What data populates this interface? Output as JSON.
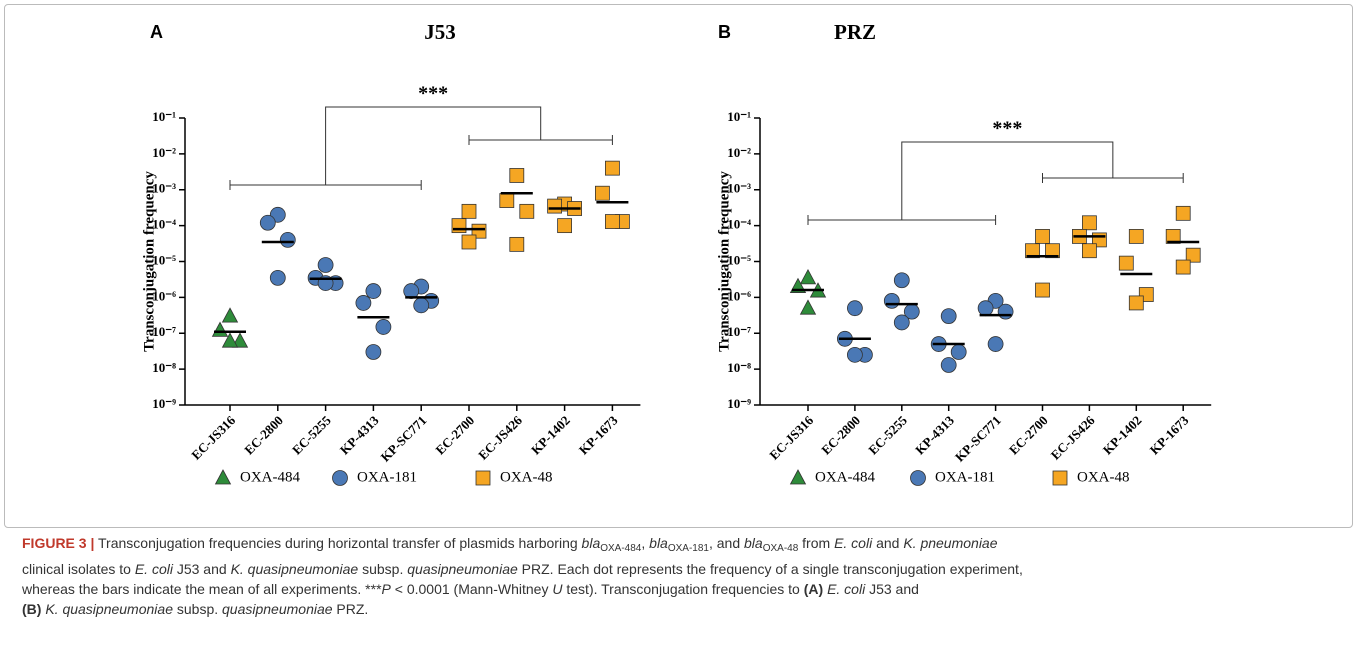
{
  "chart_data": [
    {
      "type": "strip",
      "panel": "A",
      "title": "J53",
      "y_label": "Transconjugation frequency",
      "log_y": true,
      "categories": [
        "EC-JS316",
        "EC-2800",
        "EC-5255",
        "KP-4313",
        "KP-SC771",
        "EC-2700",
        "EC-JS426",
        "KP-1402",
        "KP-1673"
      ],
      "ylim": [
        1e-09,
        0.1
      ],
      "yticks": [
        {
          "value": 1e-09,
          "label": "10⁻⁹"
        },
        {
          "value": 1e-08,
          "label": "10⁻⁸"
        },
        {
          "value": 1e-07,
          "label": "10⁻⁷"
        },
        {
          "value": 1e-06,
          "label": "10⁻⁶"
        },
        {
          "value": 1e-05,
          "label": "10⁻⁵"
        },
        {
          "value": 0.0001,
          "label": "10⁻⁴"
        },
        {
          "value": 0.001,
          "label": "10⁻³"
        },
        {
          "value": 0.01,
          "label": "10⁻²"
        },
        {
          "value": 0.1,
          "label": "10⁻¹"
        }
      ],
      "annotation": "***",
      "series": [
        {
          "name": "OXA-484",
          "color": "#2e8b3a",
          "marker": "triangle",
          "categories": [
            "EC-JS316"
          ],
          "values": [
            [
              3e-07,
              1.2e-07,
              6e-08,
              6e-08
            ]
          ],
          "means": [
            1.1e-07
          ]
        },
        {
          "name": "OXA-181",
          "color": "#4a78b5",
          "marker": "circle",
          "categories": [
            "EC-2800",
            "EC-5255",
            "KP-4313",
            "KP-SC771"
          ],
          "values": [
            [
              0.0002,
              0.00012,
              4e-05,
              3.5e-06
            ],
            [
              8e-06,
              3.5e-06,
              2.5e-06,
              2.5e-06
            ],
            [
              1.5e-06,
              7e-07,
              1.5e-07,
              3e-08
            ],
            [
              2e-06,
              1.5e-06,
              8e-07,
              6e-07
            ]
          ],
          "means": [
            3.5e-05,
            3.3e-06,
            2.8e-07,
            1e-06
          ]
        },
        {
          "name": "OXA-48",
          "color": "#f5a623",
          "marker": "square",
          "categories": [
            "EC-2700",
            "EC-JS426",
            "KP-1402",
            "KP-1673"
          ],
          "values": [
            [
              0.00025,
              0.0001,
              7e-05,
              3.5e-05
            ],
            [
              0.0025,
              0.0005,
              0.00025,
              3e-05
            ],
            [
              0.0004,
              0.00035,
              0.0003,
              0.0001
            ],
            [
              0.004,
              0.0008,
              0.00013,
              0.00013
            ]
          ],
          "means": [
            8e-05,
            0.0008,
            0.0003,
            0.00045
          ]
        }
      ]
    },
    {
      "type": "strip",
      "panel": "B",
      "title": "PRZ",
      "y_label": "Transconjugation frequency",
      "log_y": true,
      "categories": [
        "EC-JS316",
        "EC-2800",
        "EC-5255",
        "KP-4313",
        "KP-SC771",
        "EC-2700",
        "EC-JS426",
        "KP-1402",
        "KP-1673"
      ],
      "ylim": [
        1e-09,
        0.1
      ],
      "yticks": [
        {
          "value": 1e-09,
          "label": "10⁻⁹"
        },
        {
          "value": 1e-08,
          "label": "10⁻⁸"
        },
        {
          "value": 1e-07,
          "label": "10⁻⁷"
        },
        {
          "value": 1e-06,
          "label": "10⁻⁶"
        },
        {
          "value": 1e-05,
          "label": "10⁻⁵"
        },
        {
          "value": 0.0001,
          "label": "10⁻⁴"
        },
        {
          "value": 0.001,
          "label": "10⁻³"
        },
        {
          "value": 0.01,
          "label": "10⁻²"
        },
        {
          "value": 0.1,
          "label": "10⁻¹"
        }
      ],
      "annotation": "***",
      "series": [
        {
          "name": "OXA-484",
          "color": "#2e8b3a",
          "marker": "triangle",
          "categories": [
            "EC-JS316"
          ],
          "values": [
            [
              3.5e-06,
              2e-06,
              1.5e-06,
              5e-07
            ]
          ],
          "means": [
            1.6e-06
          ]
        },
        {
          "name": "OXA-181",
          "color": "#4a78b5",
          "marker": "circle",
          "categories": [
            "EC-2800",
            "EC-5255",
            "KP-4313",
            "KP-SC771"
          ],
          "values": [
            [
              5e-07,
              7e-08,
              2.5e-08,
              2.5e-08
            ],
            [
              3e-06,
              8e-07,
              4e-07,
              2e-07
            ],
            [
              3e-07,
              5e-08,
              3e-08,
              1.3e-08
            ],
            [
              8e-07,
              5e-07,
              4e-07,
              5e-08
            ]
          ],
          "means": [
            7e-08,
            6.5e-07,
            5e-08,
            3.2e-07
          ]
        },
        {
          "name": "OXA-48",
          "color": "#f5a623",
          "marker": "square",
          "categories": [
            "EC-2700",
            "EC-JS426",
            "KP-1402",
            "KP-1673"
          ],
          "values": [
            [
              5e-05,
              2e-05,
              2e-05,
              1.6e-06
            ],
            [
              0.00012,
              5e-05,
              4e-05,
              2e-05
            ],
            [
              5e-05,
              9e-06,
              1.2e-06,
              7e-07
            ],
            [
              0.00022,
              5e-05,
              1.5e-05,
              7e-06
            ]
          ],
          "means": [
            1.4e-05,
            5e-05,
            4.5e-06,
            3.5e-05
          ]
        }
      ]
    }
  ],
  "caption": {
    "lines": [
      [
        {
          "text": "FIGURE 3 |",
          "style": "fig"
        },
        {
          "text": " Transconjugation frequencies during horizontal transfer of plasmids harboring ",
          "style": ""
        },
        {
          "text": "bla",
          "style": "i"
        },
        {
          "text": "OXA-484",
          "style": "sub"
        },
        {
          "text": ", ",
          "style": ""
        },
        {
          "text": "bla",
          "style": "i"
        },
        {
          "text": "OXA-181",
          "style": "sub"
        },
        {
          "text": ", and ",
          "style": ""
        },
        {
          "text": "bla",
          "style": "i"
        },
        {
          "text": "OXA-48",
          "style": "sub"
        },
        {
          "text": " from ",
          "style": ""
        },
        {
          "text": "E. coli",
          "style": "i"
        },
        {
          "text": " and ",
          "style": ""
        },
        {
          "text": "K. pneumoniae",
          "style": "i"
        }
      ],
      [
        {
          "text": "clinical isolates to ",
          "style": ""
        },
        {
          "text": "E. coli",
          "style": "i"
        },
        {
          "text": " J53 and ",
          "style": ""
        },
        {
          "text": "K. quasipneumoniae",
          "style": "i"
        },
        {
          "text": " subsp. ",
          "style": ""
        },
        {
          "text": "quasipneumoniae",
          "style": "i"
        },
        {
          "text": " PRZ. Each dot represents the frequency of a single transconjugation experiment,",
          "style": ""
        }
      ],
      [
        {
          "text": "whereas the bars indicate the mean of all experiments. ***",
          "style": ""
        },
        {
          "text": "P",
          "style": "i"
        },
        {
          "text": " < 0.0001 (Mann-Whitney ",
          "style": ""
        },
        {
          "text": "U",
          "style": "i"
        },
        {
          "text": " test). Transconjugation frequencies to ",
          "style": ""
        },
        {
          "text": "(A)",
          "style": "b"
        },
        {
          "text": " ",
          "style": ""
        },
        {
          "text": "E. coli",
          "style": "i"
        },
        {
          "text": " J53 and",
          "style": ""
        }
      ],
      [
        {
          "text": "(B)",
          "style": "b"
        },
        {
          "text": " ",
          "style": ""
        },
        {
          "text": "K. quasipneumoniae",
          "style": "i"
        },
        {
          "text": " subsp. ",
          "style": ""
        },
        {
          "text": "quasipneumoniae",
          "style": "i"
        },
        {
          "text": " PRZ.",
          "style": ""
        }
      ]
    ]
  }
}
